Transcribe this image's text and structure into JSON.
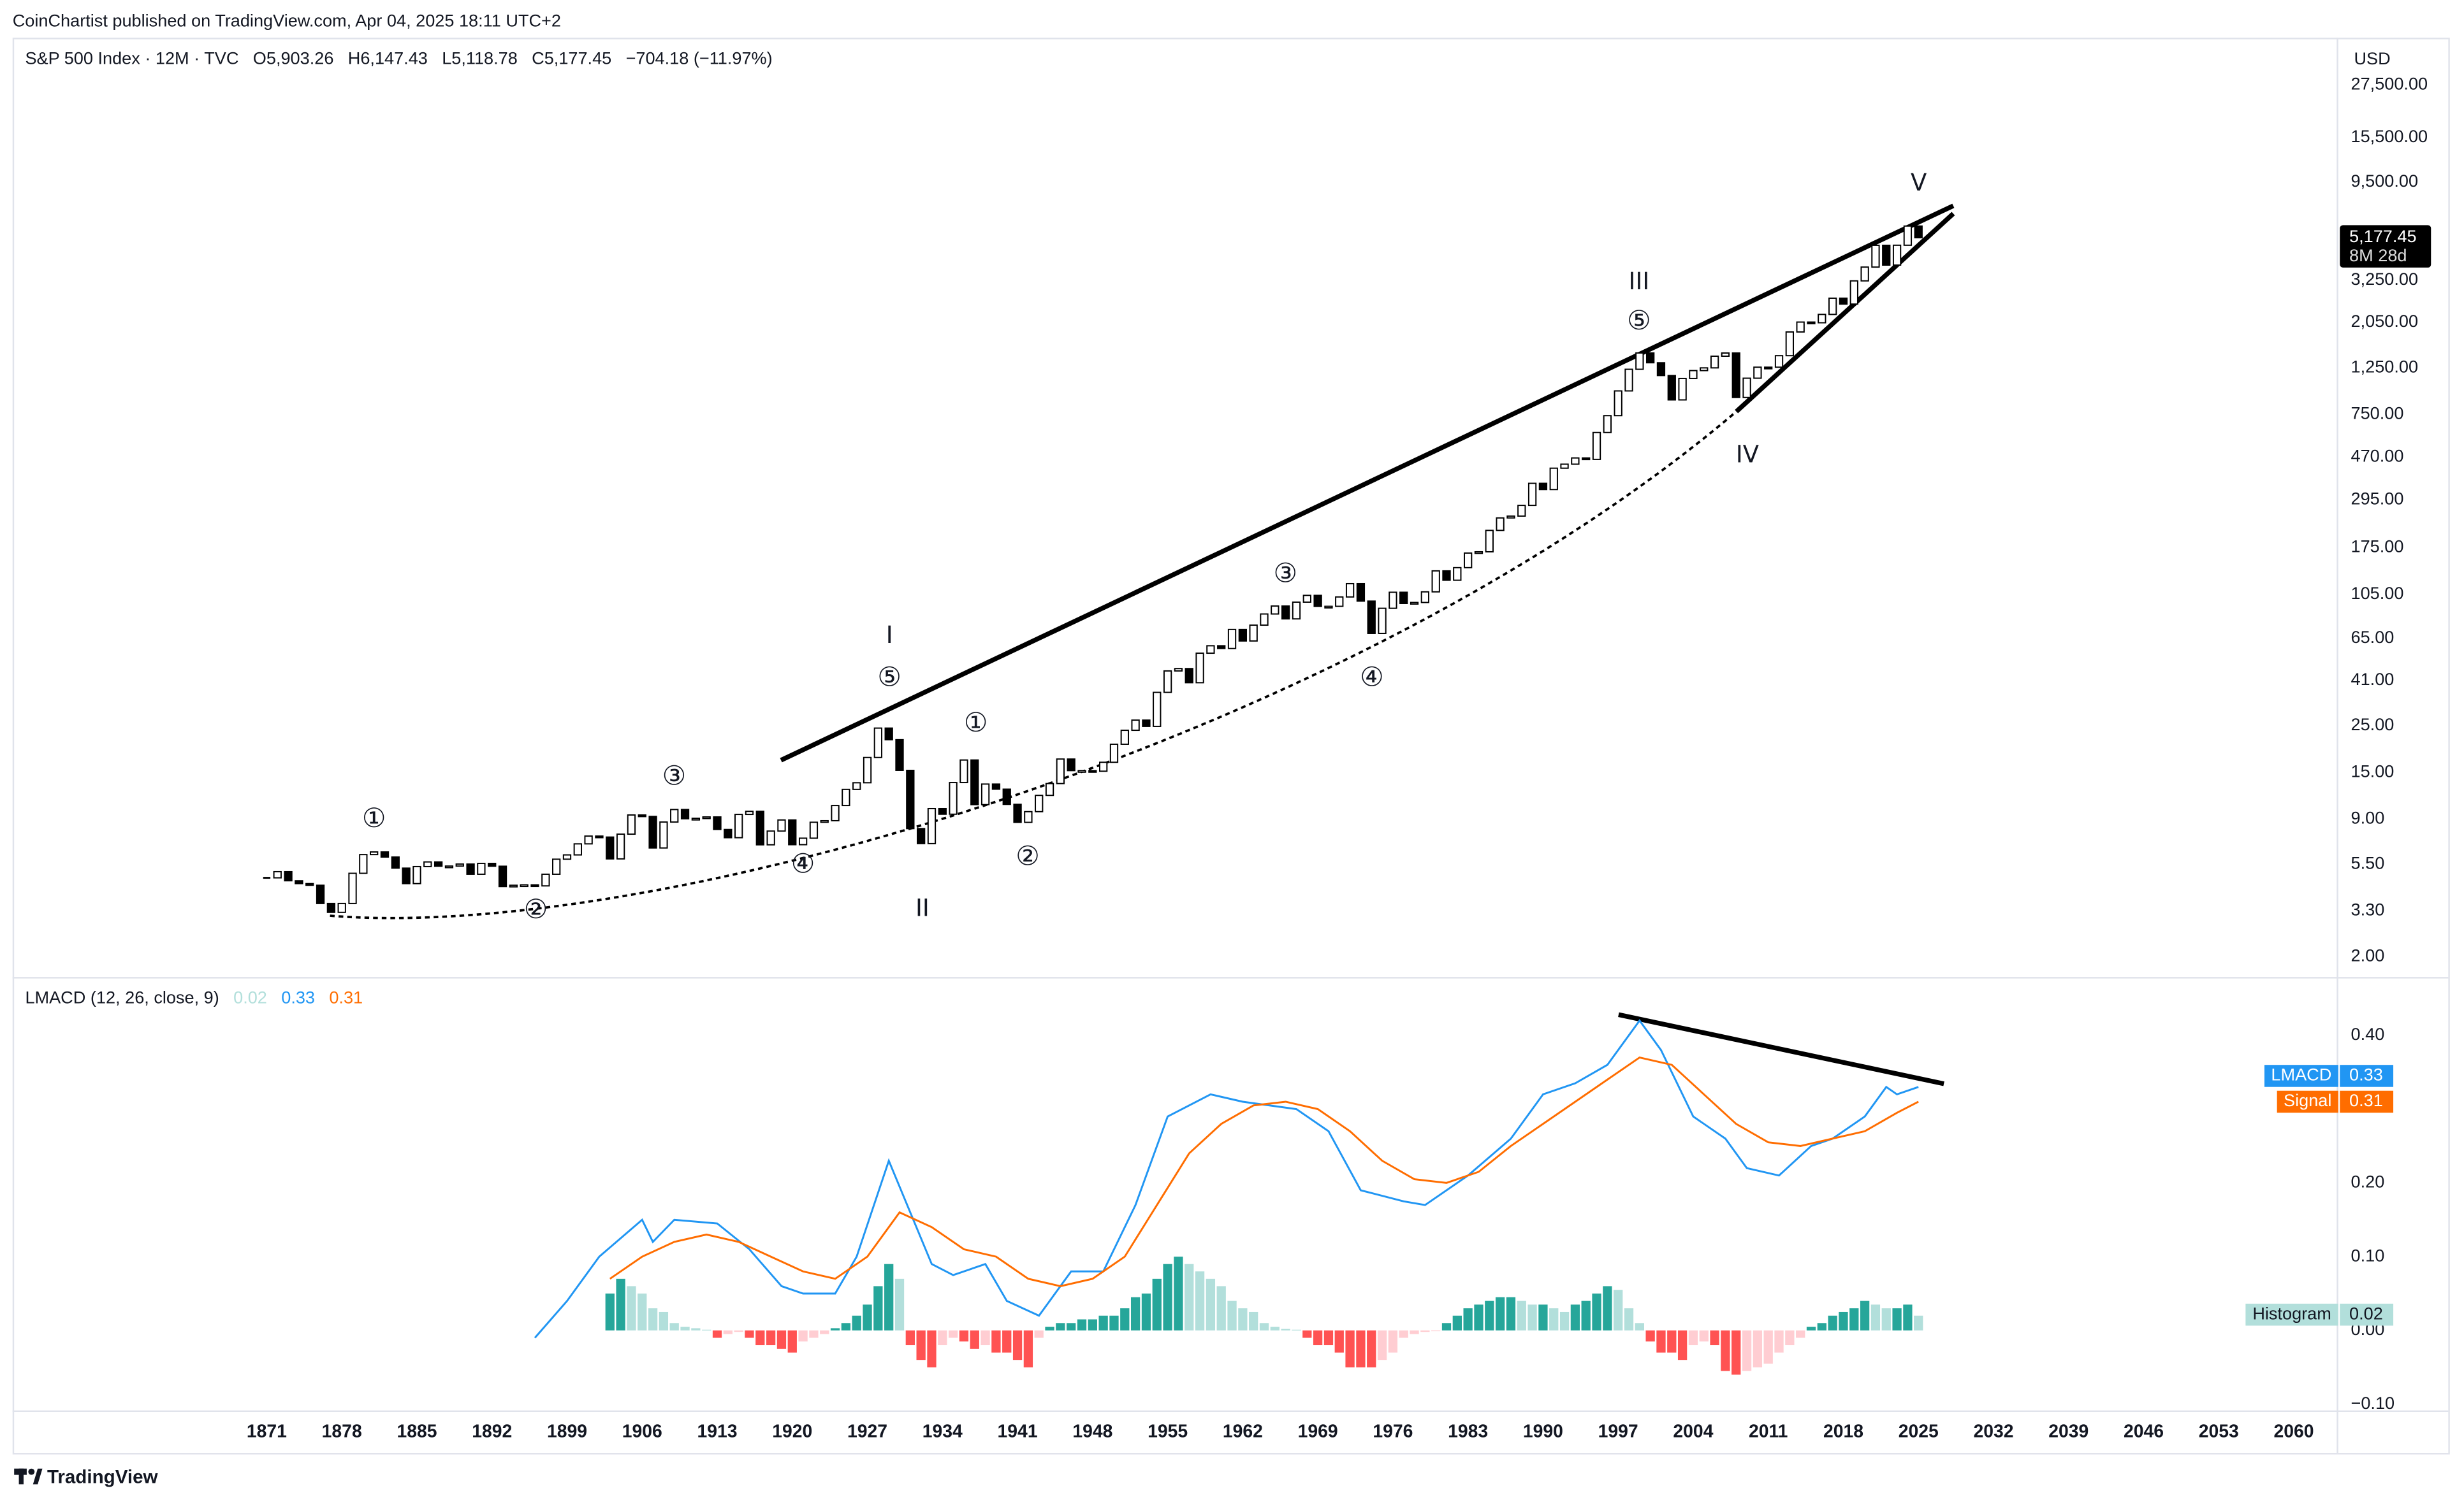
{
  "header": "CoinChartist published on TradingView.com, Apr 04, 2025 18:11 UTC+2",
  "footer": "TradingView",
  "chart_data": [
    {
      "type": "candlestick",
      "symbol": "S&P 500 Index · 12M · TVC",
      "legend_values": [
        "O5,903.26",
        "H6,147.43",
        "L5,118.78",
        "C5,177.45",
        "−704.18 (−11.97%)"
      ],
      "currency": "USD",
      "last_price_label": "5,177.45",
      "countdown": "8M 28d",
      "log_scale": true,
      "grid": false,
      "up_color": "#ffffff",
      "down_color": "#000000",
      "annotations": [
        "①",
        "②",
        "③",
        "④",
        "⑤",
        "I",
        "II",
        "①",
        "②",
        "③",
        "④",
        "⑤",
        "III",
        "IV",
        "V"
      ],
      "xlim": [
        1847.3,
        2064
      ],
      "xticks": [
        1871,
        1878,
        1885,
        1892,
        1899,
        1906,
        1913,
        1920,
        1927,
        1934,
        1941,
        1948,
        1955,
        1962,
        1969,
        1976,
        1983,
        1990,
        1997,
        2004,
        2011,
        2018,
        2025,
        2032,
        2039,
        2046,
        2053,
        2060
      ],
      "ylim": [
        1.66,
        45300
      ],
      "yticks": [
        {
          "value": 2,
          "label": "2.00"
        },
        {
          "value": 3.3,
          "label": "3.30"
        },
        {
          "value": 5.5,
          "label": "5.50"
        },
        {
          "value": 9,
          "label": "9.00"
        },
        {
          "value": 15,
          "label": "15.00"
        },
        {
          "value": 25,
          "label": "25.00"
        },
        {
          "value": 41,
          "label": "41.00"
        },
        {
          "value": 65,
          "label": "65.00"
        },
        {
          "value": 105,
          "label": "105.00"
        },
        {
          "value": 175,
          "label": "175.00"
        },
        {
          "value": 295,
          "label": "295.00"
        },
        {
          "value": 470,
          "label": "470.00"
        },
        {
          "value": 750,
          "label": "750.00"
        },
        {
          "value": 1250,
          "label": "1,250.00"
        },
        {
          "value": 2050,
          "label": "2,050.00"
        },
        {
          "value": 3250,
          "label": "3,250.00"
        },
        {
          "value": 9500,
          "label": "9,500.00"
        },
        {
          "value": 15500,
          "label": "15,500.00"
        },
        {
          "value": 27500,
          "label": "27,500.00"
        }
      ],
      "x": [
        1871,
        1872,
        1873,
        1874,
        1875,
        1876,
        1877,
        1878,
        1879,
        1880,
        1881,
        1882,
        1883,
        1884,
        1885,
        1886,
        1887,
        1888,
        1889,
        1890,
        1891,
        1892,
        1893,
        1894,
        1895,
        1896,
        1897,
        1898,
        1899,
        1900,
        1901,
        1902,
        1903,
        1904,
        1905,
        1906,
        1907,
        1908,
        1909,
        1910,
        1911,
        1912,
        1913,
        1914,
        1915,
        1916,
        1917,
        1918,
        1919,
        1920,
        1921,
        1922,
        1923,
        1924,
        1925,
        1926,
        1927,
        1928,
        1929,
        1930,
        1931,
        1932,
        1933,
        1934,
        1935,
        1936,
        1937,
        1938,
        1939,
        1940,
        1941,
        1942,
        1943,
        1944,
        1945,
        1946,
        1947,
        1948,
        1949,
        1950,
        1951,
        1952,
        1953,
        1954,
        1955,
        1956,
        1957,
        1958,
        1959,
        1960,
        1961,
        1962,
        1963,
        1964,
        1965,
        1966,
        1967,
        1968,
        1969,
        1970,
        1971,
        1972,
        1973,
        1974,
        1975,
        1976,
        1977,
        1978,
        1979,
        1980,
        1981,
        1982,
        1983,
        1984,
        1985,
        1986,
        1987,
        1988,
        1989,
        1990,
        1991,
        1992,
        1993,
        1994,
        1995,
        1996,
        1997,
        1998,
        1999,
        2000,
        2001,
        2002,
        2003,
        2004,
        2005,
        2006,
        2007,
        2008,
        2009,
        2010,
        2011,
        2012,
        2013,
        2014,
        2015,
        2016,
        2017,
        2018,
        2019,
        2020,
        2021,
        2022,
        2023,
        2024,
        2025
      ],
      "close": [
        4.74,
        5.07,
        4.59,
        4.45,
        4.37,
        3.58,
        3.25,
        3.58,
        4.98,
        6.11,
        6.29,
        5.95,
        5.27,
        4.45,
        5.36,
        5.64,
        5.38,
        5.39,
        5.51,
        4.93,
        5.55,
        5.38,
        4.31,
        4.37,
        4.39,
        4.34,
        4.93,
        5.81,
        6.09,
        6.87,
        7.48,
        7.4,
        5.83,
        7.64,
        9.42,
        9.27,
        6.57,
        8.72,
        10.0,
        9.04,
        9.08,
        9.22,
        8.04,
        7.35,
        9.48,
        9.8,
        6.8,
        7.9,
        8.92,
        6.81,
        7.31,
        8.7,
        8.85,
        10.45,
        12.46,
        13.4,
        17.66,
        24.35,
        21.45,
        15.34,
        8.12,
        6.89,
        10.1,
        9.5,
        13.43,
        17.18,
        10.55,
        13.21,
        12.49,
        10.58,
        8.69,
        9.77,
        11.67,
        13.28,
        17.36,
        15.3,
        15.3,
        15.2,
        16.76,
        20.41,
        23.77,
        26.57,
        24.81,
        35.98,
        45.48,
        46.67,
        39.99,
        55.21,
        59.89,
        58.11,
        71.55,
        63.1,
        75.02,
        84.75,
        92.43,
        80.33,
        96.47,
        103.86,
        92.06,
        92.15,
        102.09,
        118.05,
        97.55,
        68.56,
        90.19,
        107.46,
        95.1,
        96.11,
        107.94,
        135.76,
        122.55,
        140.64,
        164.93,
        167.24,
        211.28,
        242.17,
        247.08,
        277.72,
        353.4,
        330.22,
        417.09,
        435.71,
        466.45,
        459.27,
        615.93,
        740.74,
        970.43,
        1229.23,
        1469.25,
        1320.28,
        1148.08,
        879.82,
        1111.92,
        1211.92,
        1248.29,
        1418.3,
        1468.36,
        903.25,
        1115.1,
        1257.64,
        1257.6,
        1426.19,
        1848.36,
        2058.9,
        2043.94,
        2238.83,
        2673.61,
        2506.85,
        3230.78,
        3756.07,
        4766.18,
        3839.5,
        4769.83,
        5881.63,
        5177.45
      ]
    },
    {
      "type": "line",
      "title": "LMACD (12, 26, close, 9)",
      "ylim": [
        -0.1085,
        0.477
      ],
      "yticks": [
        {
          "value": -0.1,
          "label": "−0.10"
        },
        {
          "value": 0,
          "label": "0.00"
        },
        {
          "value": 0.1,
          "label": "0.10"
        },
        {
          "value": 0.2,
          "label": "0.20"
        },
        {
          "value": 0.4,
          "label": "0.40"
        }
      ],
      "series": [
        {
          "name": "LMACD",
          "color": "#2196f3",
          "x": [
            1896,
            1899,
            1902,
            1906,
            1907,
            1909,
            1913,
            1916,
            1919,
            1921,
            1924,
            1926,
            1929,
            1931,
            1933,
            1935,
            1938,
            1940,
            1943,
            1946,
            1949,
            1952,
            1955,
            1959,
            1962,
            1967,
            1970,
            1973,
            1977,
            1979,
            1983,
            1987,
            1990,
            1993,
            1996,
            1999,
            2001,
            2004,
            2007,
            2009,
            2012,
            2015,
            2017,
            2020,
            2022,
            2023,
            2025
          ],
          "values": [
            -0.01,
            0.04,
            0.1,
            0.15,
            0.12,
            0.15,
            0.145,
            0.11,
            0.06,
            0.05,
            0.05,
            0.1,
            0.23,
            0.16,
            0.09,
            0.075,
            0.09,
            0.04,
            0.02,
            0.08,
            0.08,
            0.17,
            0.29,
            0.32,
            0.31,
            0.3,
            0.27,
            0.19,
            0.175,
            0.17,
            0.21,
            0.26,
            0.32,
            0.335,
            0.36,
            0.42,
            0.38,
            0.29,
            0.26,
            0.22,
            0.21,
            0.25,
            0.26,
            0.29,
            0.33,
            0.32,
            0.33
          ]
        },
        {
          "name": "Signal",
          "color": "#ff6d00",
          "x": [
            1903,
            1906,
            1909,
            1912,
            1915,
            1918,
            1921,
            1924,
            1927,
            1930,
            1933,
            1936,
            1939,
            1942,
            1945,
            1948,
            1951,
            1954,
            1957,
            1960,
            1963,
            1966,
            1969,
            1972,
            1975,
            1978,
            1981,
            1984,
            1987,
            1990,
            1993,
            1996,
            1999,
            2002,
            2005,
            2008,
            2011,
            2014,
            2017,
            2020,
            2023,
            2025
          ],
          "values": [
            0.07,
            0.1,
            0.12,
            0.13,
            0.12,
            0.1,
            0.08,
            0.07,
            0.1,
            0.16,
            0.14,
            0.11,
            0.1,
            0.07,
            0.06,
            0.07,
            0.1,
            0.17,
            0.24,
            0.28,
            0.305,
            0.31,
            0.3,
            0.27,
            0.23,
            0.205,
            0.2,
            0.215,
            0.25,
            0.28,
            0.31,
            0.34,
            0.37,
            0.36,
            0.32,
            0.28,
            0.255,
            0.25,
            0.26,
            0.27,
            0.295,
            0.31
          ]
        },
        {
          "name": "Histogram",
          "type": "histogram",
          "colors": [
            "#26a69a",
            "#b2dfdb",
            "#ffcdd2",
            "#ff5252"
          ],
          "x": [
            1903,
            1904,
            1905,
            1906,
            1907,
            1908,
            1909,
            1910,
            1911,
            1912,
            1913,
            1914,
            1915,
            1916,
            1917,
            1918,
            1919,
            1920,
            1921,
            1922,
            1923,
            1924,
            1925,
            1926,
            1927,
            1928,
            1929,
            1930,
            1931,
            1932,
            1933,
            1934,
            1935,
            1936,
            1937,
            1938,
            1939,
            1940,
            1941,
            1942,
            1943,
            1944,
            1945,
            1946,
            1947,
            1948,
            1949,
            1950,
            1951,
            1952,
            1953,
            1954,
            1955,
            1956,
            1957,
            1958,
            1959,
            1960,
            1961,
            1962,
            1963,
            1964,
            1965,
            1966,
            1967,
            1968,
            1969,
            1970,
            1971,
            1972,
            1973,
            1974,
            1975,
            1976,
            1977,
            1978,
            1979,
            1980,
            1981,
            1982,
            1983,
            1984,
            1985,
            1986,
            1987,
            1988,
            1989,
            1990,
            1991,
            1992,
            1993,
            1994,
            1995,
            1996,
            1997,
            1998,
            1999,
            2000,
            2001,
            2002,
            2003,
            2004,
            2005,
            2006,
            2007,
            2008,
            2009,
            2010,
            2011,
            2012,
            2013,
            2014,
            2015,
            2016,
            2017,
            2018,
            2019,
            2020,
            2021,
            2022,
            2023,
            2024,
            2025
          ],
          "values": [
            0.05,
            0.07,
            0.06,
            0.05,
            0.03,
            0.025,
            0.01,
            0.005,
            0.003,
            0.001,
            -0.01,
            -0.005,
            -0.002,
            -0.01,
            -0.02,
            -0.02,
            -0.025,
            -0.03,
            -0.015,
            -0.01,
            -0.005,
            0.003,
            0.01,
            0.02,
            0.035,
            0.06,
            0.09,
            0.07,
            -0.02,
            -0.04,
            -0.05,
            -0.02,
            -0.01,
            -0.015,
            -0.025,
            -0.02,
            -0.03,
            -0.03,
            -0.04,
            -0.05,
            -0.01,
            0.005,
            0.01,
            0.01,
            0.015,
            0.015,
            0.02,
            0.02,
            0.03,
            0.045,
            0.05,
            0.07,
            0.09,
            0.1,
            0.09,
            0.08,
            0.07,
            0.06,
            0.04,
            0.03,
            0.025,
            0.01,
            0.005,
            0.002,
            0.001,
            -0.01,
            -0.02,
            -0.02,
            -0.03,
            -0.05,
            -0.05,
            -0.05,
            -0.04,
            -0.03,
            -0.01,
            -0.005,
            -0.002,
            -0.001,
            0.01,
            0.02,
            0.03,
            0.035,
            0.04,
            0.045,
            0.045,
            0.04,
            0.035,
            0.035,
            0.03,
            0.025,
            0.035,
            0.04,
            0.05,
            0.06,
            0.055,
            0.03,
            0.01,
            -0.015,
            -0.03,
            -0.03,
            -0.04,
            -0.02,
            -0.015,
            -0.02,
            -0.055,
            -0.06,
            -0.055,
            -0.05,
            -0.045,
            -0.03,
            -0.02,
            -0.01,
            0.005,
            0.01,
            0.02,
            0.025,
            0.03,
            0.04,
            0.035,
            0.03,
            0.03,
            0.035,
            0.02
          ]
        }
      ]
    }
  ]
}
